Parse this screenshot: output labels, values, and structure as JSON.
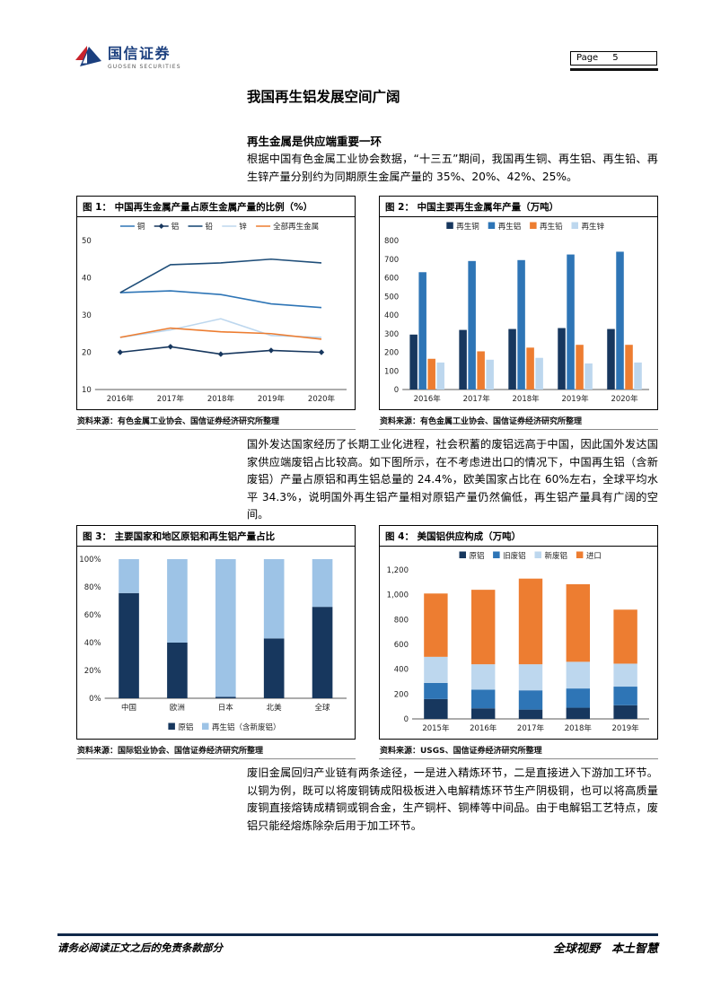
{
  "header": {
    "brand_cn": "国信证券",
    "brand_en": "GUOSEN SECURITIES",
    "page_label": "Page",
    "page_number": "5",
    "brand_blue": "#1B3F7E",
    "brand_red": "#C8242D"
  },
  "title": "我国再生铝发展空间广阔",
  "section_heading": "再生金属是供应端重要一环",
  "paragraphs": {
    "p1": "根据中国有色金属工业协会数据，“十三五”期间，我国再生铜、再生铝、再生铅、再生锌产量分别约为同期原生金属产量的 35%、20%、42%、25%。",
    "p2": "国外发达国家经历了长期工业化进程，社会积蓄的废铝远高于中国，因此国外发达国家供应端废铝占比较高。如下图所示，在不考虑进出口的情况下，中国再生铝（含新废铝）产量占原铝和再生铝总量的 24.4%，欧美国家占比在 60%左右，全球平均水平 34.3%，说明国外再生铝产量相对原铝产量仍然偏低，再生铝产量具有广阔的空间。",
    "p3": "废旧金属回归产业链有两条途径，一是进入精炼环节，二是直接进入下游加工环节。以铜为例，既可以将废铜铸成阳极板进入电解精炼环节生产阴极铜，也可以将高质量废铜直接熔铸成精铜或铜合金，生产铜杆、铜棒等中间品。由于电解铝工艺特点，废铝只能经熔炼除杂后用于加工环节。"
  },
  "figures": [
    {
      "caption": "图 1： 中国再生金属产量占原生金属产量的比例（%）",
      "source": "资料来源：有色金属工业协会、国信证券经济研究所整理"
    },
    {
      "caption": "图 2： 中国主要再生金属年产量（万吨）",
      "source": "资料来源：有色金属工业协会、国信证券经济研究所整理"
    },
    {
      "caption": "图 3： 主要国家和地区原铝和再生铝产量占比",
      "source": "资料来源：国际铝业协会、国信证券经济研究所整理"
    },
    {
      "caption": "图 4： 美国铝供应构成（万吨）",
      "source": "资料来源：USGS、国信证券经济研究所整理"
    }
  ],
  "footer": {
    "left": "请务必阅读正文之后的免责条款部分",
    "right": "全球视野　本土智慧"
  },
  "chart_data": [
    {
      "type": "line",
      "title": "中国再生金属产量占原生金属产量的比例（%）",
      "categories": [
        "2016年",
        "2017年",
        "2018年",
        "2019年",
        "2020年"
      ],
      "series": [
        {
          "name": "铜",
          "color": "#2E75B6",
          "values": [
            36,
            36.5,
            35.5,
            33,
            32
          ]
        },
        {
          "name": "铝",
          "color": "#17375E",
          "values": [
            20,
            21.5,
            19.5,
            20.5,
            20
          ],
          "marker": "diamond"
        },
        {
          "name": "铅",
          "color": "#1F4E79",
          "values": [
            36,
            43.5,
            44,
            45,
            44
          ]
        },
        {
          "name": "锌",
          "color": "#BDD7EE",
          "values": [
            24,
            26,
            29,
            24.5,
            24
          ]
        },
        {
          "name": "全部再生金属",
          "color": "#ED7D31",
          "values": [
            24,
            26.5,
            25.5,
            25,
            23.5
          ]
        }
      ],
      "ylim": [
        10,
        50
      ],
      "yticks": [
        10,
        20,
        30,
        40,
        50
      ],
      "legend_position": "top",
      "grid": false
    },
    {
      "type": "bar",
      "title": "中国主要再生金属年产量（万吨）",
      "categories": [
        "2016年",
        "2017年",
        "2018年",
        "2019年",
        "2020年"
      ],
      "series": [
        {
          "name": "再生铜",
          "color": "#17375E",
          "values": [
            295,
            320,
            325,
            330,
            325
          ]
        },
        {
          "name": "再生铝",
          "color": "#2E75B6",
          "values": [
            630,
            690,
            695,
            725,
            740
          ]
        },
        {
          "name": "再生铅",
          "color": "#ED7D31",
          "values": [
            165,
            205,
            225,
            240,
            240
          ]
        },
        {
          "name": "再生锌",
          "color": "#BDD7EE",
          "values": [
            145,
            160,
            170,
            140,
            145
          ]
        }
      ],
      "ylim": [
        0,
        800
      ],
      "yticks": [
        0,
        100,
        200,
        300,
        400,
        500,
        600,
        700,
        800
      ],
      "legend_position": "top",
      "grid": false
    },
    {
      "type": "stacked100",
      "title": "主要国家和地区原铝和再生铝产量占比",
      "categories": [
        "中国",
        "欧洲",
        "日本",
        "北美",
        "全球"
      ],
      "series": [
        {
          "name": "原铝",
          "color": "#17375E",
          "values": [
            75.6,
            40,
            1,
            43,
            65.7
          ]
        },
        {
          "name": "再生铝（含新废铝）",
          "color": "#9DC3E6",
          "values": [
            24.4,
            60,
            99,
            57,
            34.3
          ]
        }
      ],
      "ylim": [
        0,
        100
      ],
      "yticks_pct": [
        "0%",
        "20%",
        "40%",
        "60%",
        "80%",
        "100%"
      ],
      "legend_position": "bottom",
      "grid": false
    },
    {
      "type": "stacked",
      "title": "美国铝供应构成（万吨）",
      "categories": [
        "2015年",
        "2016年",
        "2017年",
        "2018年",
        "2019年"
      ],
      "series": [
        {
          "name": "原铝",
          "color": "#17375E",
          "values": [
            160,
            85,
            75,
            90,
            110
          ]
        },
        {
          "name": "旧废铝",
          "color": "#2E75B6",
          "values": [
            130,
            150,
            155,
            155,
            150
          ]
        },
        {
          "name": "新废铝",
          "color": "#BDD7EE",
          "values": [
            210,
            205,
            210,
            215,
            185
          ]
        },
        {
          "name": "进口",
          "color": "#ED7D31",
          "values": [
            510,
            600,
            690,
            625,
            435
          ]
        }
      ],
      "ylim": [
        0,
        1200
      ],
      "yticks": [
        0,
        200,
        400,
        600,
        800,
        1000,
        1200
      ],
      "ytick_labels": [
        "0",
        "200",
        "400",
        "600",
        "800",
        "1,000",
        "1,200"
      ],
      "legend_position": "top",
      "grid": false
    }
  ]
}
